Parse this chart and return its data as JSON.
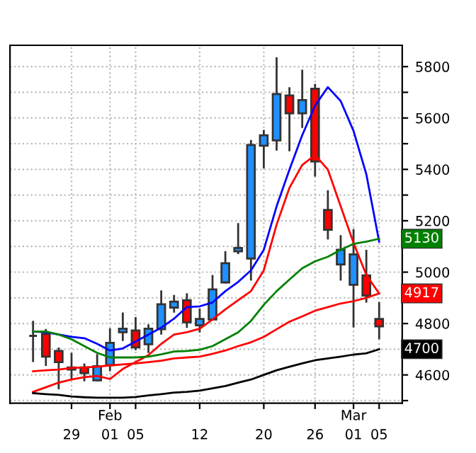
{
  "chart_data": {
    "type": "candlestick",
    "categories": [
      null,
      null,
      null,
      "29",
      null,
      null,
      "01",
      null,
      "05",
      null,
      null,
      null,
      null,
      "12",
      null,
      null,
      null,
      null,
      "20",
      null,
      null,
      null,
      "26",
      null,
      null,
      "01",
      null,
      "05"
    ],
    "ohlc": [
      [
        4752,
        4807,
        4654,
        4752
      ],
      [
        4760,
        4775,
        4639,
        4671
      ],
      [
        4693,
        4703,
        4548,
        4650
      ],
      [
        4629,
        4682,
        4588,
        4621
      ],
      [
        4629,
        4641,
        4579,
        4607
      ],
      [
        4579,
        4677,
        4579,
        4634
      ],
      [
        4638,
        4778,
        4618,
        4725
      ],
      [
        4766,
        4839,
        4736,
        4780
      ],
      [
        4773,
        4821,
        4700,
        4707
      ],
      [
        4719,
        4793,
        4689,
        4780
      ],
      [
        4778,
        4925,
        4761,
        4875
      ],
      [
        4862,
        4907,
        4846,
        4885
      ],
      [
        4891,
        4914,
        4787,
        4805
      ],
      [
        4793,
        4855,
        4769,
        4818
      ],
      [
        4816,
        4985,
        4816,
        4933
      ],
      [
        4960,
        5078,
        4960,
        5035
      ],
      [
        5081,
        5187,
        5074,
        5094
      ],
      [
        5053,
        5511,
        4971,
        5495
      ],
      [
        5492,
        5550,
        5408,
        5533
      ],
      [
        5513,
        5832,
        5477,
        5693
      ],
      [
        5688,
        5716,
        5474,
        5618
      ],
      [
        5618,
        5784,
        5565,
        5670
      ],
      [
        5714,
        5729,
        5376,
        5431
      ],
      [
        5242,
        5315,
        5131,
        5165
      ],
      [
        5030,
        5140,
        4971,
        5087
      ],
      [
        4951,
        5164,
        4789,
        5069
      ],
      [
        4987,
        5083,
        4885,
        4909
      ],
      [
        4818,
        4880,
        4743,
        4789
      ]
    ],
    "colors": [
      "#333333",
      "#ff0000",
      "#ff0000",
      "#ff0000",
      "#ff0000",
      "#1e90ff",
      "#1e90ff",
      "#1e90ff",
      "#ff0000",
      "#1e90ff",
      "#1e90ff",
      "#1e90ff",
      "#ff0000",
      "#1e90ff",
      "#1e90ff",
      "#1e90ff",
      "#1e90ff",
      "#1e90ff",
      "#1e90ff",
      "#1e90ff",
      "#ff0000",
      "#1e90ff",
      "#ff0000",
      "#ff0000",
      "#1e90ff",
      "#1e90ff",
      "#ff0000",
      "#ff0000"
    ],
    "series": [
      {
        "type": "line",
        "color": "#0000ff",
        "values": [
          4769,
          4766,
          4757,
          4748,
          4743,
          4721,
          4695,
          4703,
          4730,
          4757,
          4784,
          4819,
          4864,
          4867,
          4882,
          4926,
          4962,
          5007,
          5087,
          5256,
          5399,
          5533,
          5648,
          5720,
          5666,
          5550,
          5381,
          5119
        ]
      },
      {
        "type": "line",
        "color": "#ff0000",
        "values": [
          4534,
          4552,
          4570,
          4582,
          4591,
          4596,
          4584,
          4623,
          4650,
          4677,
          4721,
          4757,
          4766,
          4780,
          4816,
          4855,
          4891,
          4926,
          5007,
          5185,
          5328,
          5417,
          5456,
          5399,
          5256,
          5114,
          4989,
          4917
        ]
      },
      {
        "type": "line",
        "color": "#008000",
        "values": [
          4769,
          4769,
          4757,
          4739,
          4712,
          4686,
          4668,
          4668,
          4668,
          4671,
          4680,
          4691,
          4693,
          4698,
          4712,
          4739,
          4766,
          4810,
          4873,
          4926,
          4971,
          5015,
          5042,
          5060,
          5087,
          5110,
          5119,
          5130
        ],
        "value_labels": [
          null,
          null,
          null,
          null,
          null,
          null,
          null,
          null,
          null,
          null,
          null,
          null,
          null,
          null,
          null,
          null,
          null,
          null,
          null,
          null,
          null,
          null,
          null,
          null,
          null,
          null,
          null,
          "5130"
        ]
      },
      {
        "type": "line",
        "color": "#ff0000",
        "values": [
          4614,
          4618,
          4621,
          4627,
          4629,
          4632,
          4637,
          4641,
          4645,
          4650,
          4655,
          4664,
          4668,
          4671,
          4682,
          4695,
          4712,
          4727,
          4748,
          4778,
          4807,
          4828,
          4850,
          4864,
          4878,
          4887,
          4900,
          4917
        ],
        "value_labels": [
          null,
          null,
          null,
          null,
          null,
          null,
          null,
          null,
          null,
          null,
          null,
          null,
          null,
          null,
          null,
          null,
          null,
          null,
          null,
          null,
          null,
          null,
          null,
          null,
          null,
          null,
          null,
          "4917"
        ]
      },
      {
        "type": "line",
        "color": "#000000",
        "values": [
          4529,
          4525,
          4522,
          4516,
          4513,
          4511,
          4511,
          4511,
          4514,
          4520,
          4525,
          4531,
          4534,
          4539,
          4548,
          4557,
          4570,
          4582,
          4600,
          4618,
          4632,
          4645,
          4657,
          4664,
          4671,
          4679,
          4684,
          4700
        ],
        "value_labels": [
          null,
          null,
          null,
          null,
          null,
          null,
          null,
          null,
          null,
          null,
          null,
          null,
          null,
          null,
          null,
          null,
          null,
          null,
          null,
          null,
          null,
          null,
          null,
          null,
          null,
          null,
          null,
          "4700"
        ]
      }
    ],
    "ylim": [
      4490,
      5883
    ],
    "yticks": [
      {
        "value": 4500,
        "label": null
      },
      4600,
      {
        "value": 4700,
        "label": null
      },
      4800,
      {
        "value": 4900,
        "label": null
      },
      5000,
      {
        "value": 5100,
        "label": null
      },
      5200,
      {
        "value": 5300,
        "label": null
      },
      5400,
      {
        "value": 5500,
        "label": null
      },
      5600,
      {
        "value": 5700,
        "label": null
      },
      5800
    ],
    "grid": true,
    "annotations": [
      "Feb",
      "Mar"
    ]
  }
}
